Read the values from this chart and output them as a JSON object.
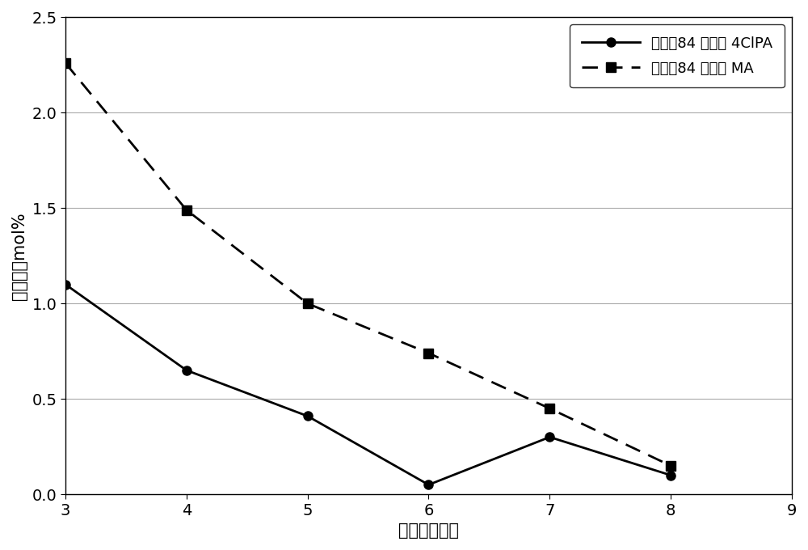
{
  "line1_label": "实施例84 残余的 4ClPA",
  "line1_x": [
    3,
    4,
    5,
    6,
    7,
    8
  ],
  "line1_y": [
    1.1,
    0.65,
    0.41,
    0.05,
    0.3,
    0.1
  ],
  "line1_color": "#000000",
  "line1_style": "solid",
  "line1_marker": "o",
  "line1_markersize": 8,
  "line2_label": "实施例84 残余的 MA",
  "line2_x": [
    3,
    4,
    5,
    6,
    7,
    8
  ],
  "line2_y": [
    2.26,
    1.49,
    1.0,
    0.74,
    0.45,
    0.15
  ],
  "line2_color": "#000000",
  "line2_style": "dashed",
  "line2_marker": "s",
  "line2_markersize": 8,
  "xlabel": "时间（小时）",
  "ylabel": "残余的，mol%",
  "xlim": [
    3,
    9
  ],
  "ylim": [
    0.0,
    2.5
  ],
  "xticks": [
    3,
    4,
    5,
    6,
    7,
    8,
    9
  ],
  "yticks": [
    0.0,
    0.5,
    1.0,
    1.5,
    2.0,
    2.5
  ],
  "background_color": "#ffffff",
  "grid_color": "#aaaaaa",
  "axis_fontsize": 15,
  "tick_fontsize": 14,
  "legend_fontsize": 13,
  "legend_loc": "upper right",
  "figsize": [
    10.0,
    6.8
  ],
  "dpi": 100
}
